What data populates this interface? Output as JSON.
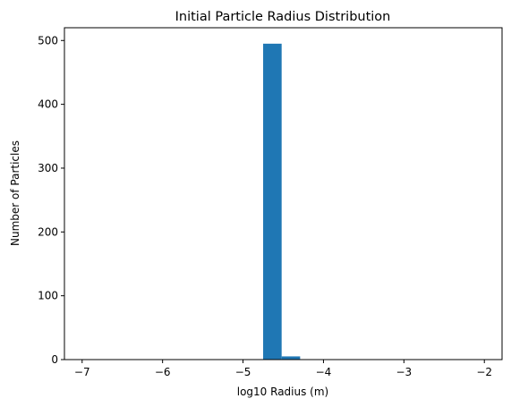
{
  "chart_data": {
    "type": "bar",
    "title": "Initial Particle Radius Distribution",
    "xlabel": "log10 Radius (m)",
    "ylabel": "Number of Particles",
    "xlim": [
      -7.22,
      -1.78
    ],
    "ylim": [
      0,
      520
    ],
    "xticks": [
      -7,
      -6,
      -5,
      -4,
      -3,
      -2
    ],
    "yticks": [
      0,
      100,
      200,
      300,
      400,
      500
    ],
    "grid": false,
    "bins": [
      {
        "x0": -4.75,
        "x1": -4.52,
        "value": 495
      },
      {
        "x0": -4.52,
        "x1": -4.29,
        "value": 5
      }
    ],
    "bar_color": "#1f77b4"
  }
}
